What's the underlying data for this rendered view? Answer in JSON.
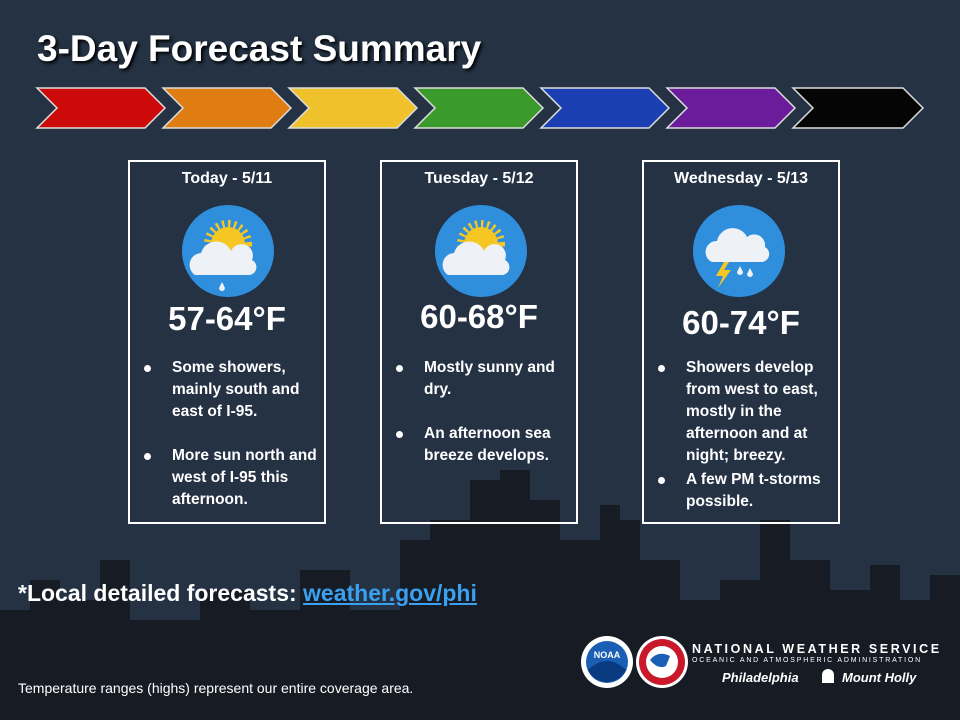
{
  "title": "3-Day Forecast Summary",
  "days": [
    {
      "label": "Today - 5/11",
      "temp": "57-64°F",
      "bullets": [
        "Some showers, mainly south and east of I-95.",
        "More sun north and west of I-95 this afternoon."
      ]
    },
    {
      "label": "Tuesday - 5/12",
      "temp": "60-68°F",
      "bullets": [
        "Mostly sunny and dry.",
        "An afternoon sea breeze develops."
      ]
    },
    {
      "label": "Wednesday - 5/13",
      "temp": "60-74°F",
      "bullets": [
        "Showers develop from west to east, mostly in the afternoon and at night; breezy.",
        "A few PM t-storms possible."
      ]
    }
  ],
  "local_forecasts": {
    "prefix": "*Local detailed forecasts:",
    "link": "weather.gov/phi"
  },
  "footnote": "Temperature ranges (highs) represent our entire coverage area.",
  "branding": {
    "noaa": "NOAA",
    "agency": "NATIONAL WEATHER SERVICE",
    "subagency": "OCEANIC AND ATMOSPHERIC ADMINISTRATION",
    "office_1": "Philadelphia",
    "office_2": "Mount Holly"
  }
}
